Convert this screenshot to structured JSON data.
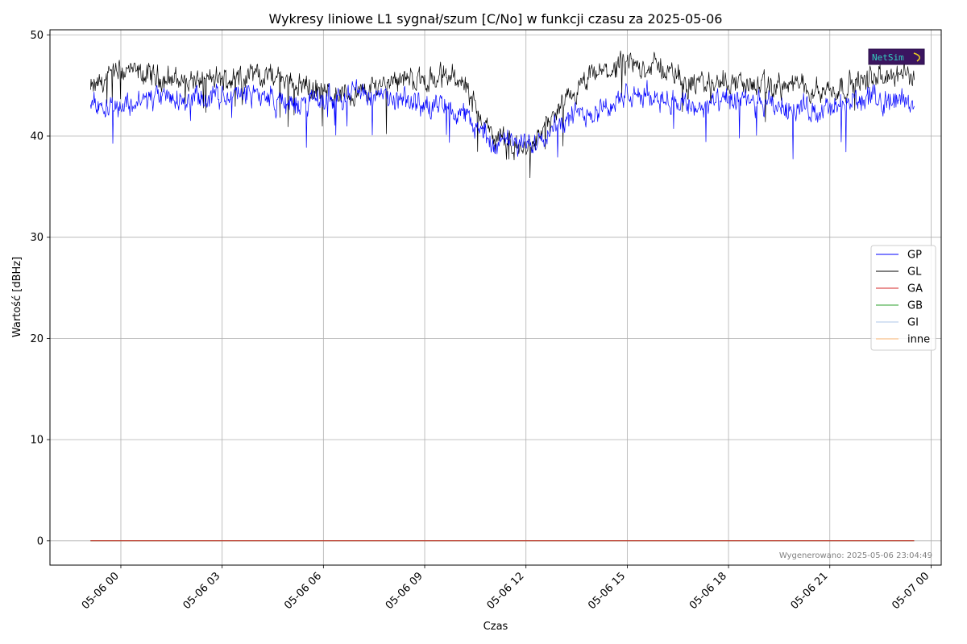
{
  "chart_data": {
    "type": "line",
    "title": "Wykresy liniowe L1 sygnał/szum [C/No] w funkcji czasu za 2025-05-06",
    "xlabel": "Czas",
    "ylabel": "Wartość [dBHz]",
    "x_tick_labels": [
      "05-06 00",
      "05-06 03",
      "05-06 06",
      "05-06 09",
      "05-06 12",
      "05-06 15",
      "05-06 18",
      "05-06 21",
      "05-07 00"
    ],
    "x_tick_hours": [
      0,
      3,
      6,
      9,
      12,
      15,
      18,
      21,
      24
    ],
    "xlim_hours": [
      -2.1,
      24.3
    ],
    "yticks": [
      0,
      10,
      20,
      30,
      40,
      50
    ],
    "ylim": [
      -2.4,
      50.5
    ],
    "grid": true,
    "legend_position": "right",
    "x": [
      "05-05 23:00",
      "05-06 00:00",
      "05-06 01:00",
      "05-06 02:00",
      "05-06 03:00",
      "05-06 04:00",
      "05-06 05:00",
      "05-06 06:00",
      "05-06 07:00",
      "05-06 08:00",
      "05-06 09:00",
      "05-06 10:00",
      "05-06 11:00",
      "05-06 12:00",
      "05-06 13:00",
      "05-06 14:00",
      "05-06 15:00",
      "05-06 16:00",
      "05-06 17:00",
      "05-06 18:00",
      "05-06 19:00",
      "05-06 20:00",
      "05-06 21:00",
      "05-06 22:00",
      "05-06 23:00"
    ],
    "x_hours": [
      -0.9,
      0,
      1,
      2,
      3,
      4,
      5,
      6,
      7,
      8,
      9,
      10,
      11,
      12,
      13,
      14,
      15,
      16,
      17,
      18,
      19,
      20,
      21,
      22,
      23
    ],
    "series": [
      {
        "name": "GP",
        "color": "#0000ff",
        "values": [
          43.5,
          43.0,
          43.8,
          43.5,
          43.8,
          44.3,
          43.0,
          43.6,
          44.5,
          43.5,
          43.2,
          42.5,
          39.5,
          39.0,
          41.5,
          42.5,
          43.8,
          44.0,
          42.8,
          43.5,
          43.0,
          42.8,
          42.5,
          43.8,
          43.5
        ]
      },
      {
        "name": "GL",
        "color": "#000000",
        "values": [
          44.5,
          46.5,
          45.8,
          45.5,
          45.5,
          46.2,
          45.6,
          44.3,
          44.0,
          45.8,
          45.5,
          46.0,
          40.0,
          38.5,
          42.5,
          46.0,
          47.0,
          46.8,
          45.0,
          45.5,
          44.8,
          45.0,
          44.5,
          45.5,
          46.0
        ]
      },
      {
        "name": "GA",
        "color": "#d62728",
        "values": [
          0,
          0,
          0,
          0,
          0,
          0,
          0,
          0,
          0,
          0,
          0,
          0,
          0,
          0,
          0,
          0,
          0,
          0,
          0,
          0,
          0,
          0,
          0,
          0,
          0
        ]
      },
      {
        "name": "GB",
        "color": "#2ca02c",
        "values": [
          0,
          0,
          0,
          0,
          0,
          0,
          0,
          0,
          0,
          0,
          0,
          0,
          0,
          0,
          0,
          0,
          0,
          0,
          0,
          0,
          0,
          0,
          0,
          0,
          0
        ]
      },
      {
        "name": "GI",
        "color": "#aec7e8",
        "values": [
          0,
          0,
          0,
          0,
          0,
          0,
          0,
          0,
          0,
          0,
          0,
          0,
          0,
          0,
          0,
          0,
          0,
          0,
          0,
          0,
          0,
          0,
          0,
          0,
          0
        ]
      },
      {
        "name": "inne",
        "color": "#ffbb78",
        "values": [
          0,
          0,
          0,
          0,
          0,
          0,
          0,
          0,
          0,
          0,
          0,
          0,
          0,
          0,
          0,
          0,
          0,
          0,
          0,
          0,
          0,
          0,
          0,
          0,
          0
        ]
      }
    ],
    "footer": "Wygenerowano: 2025-05-06 23:04:49",
    "logo_text": "NetSim"
  }
}
